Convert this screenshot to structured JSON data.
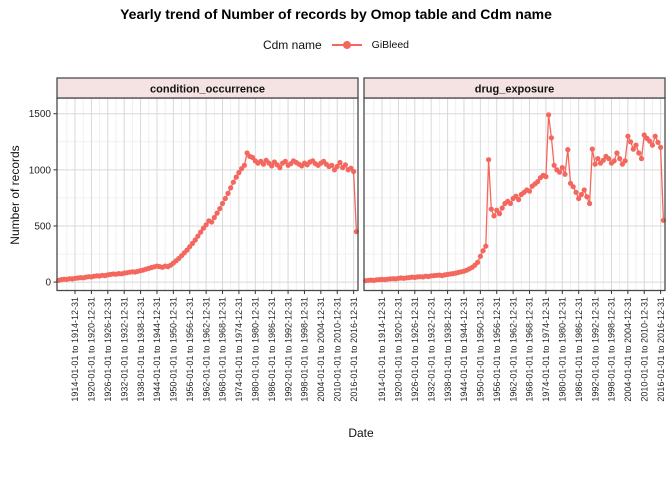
{
  "page": {
    "title": "Yearly trend of Number of records by Omop table and Cdm name"
  },
  "legend": {
    "title": "Cdm name",
    "items": [
      {
        "label": "GiBleed",
        "color": "#f4675e"
      }
    ]
  },
  "style": {
    "series_color": "#f4675e",
    "strip_fill": "#f5e3e3",
    "panel_border": "#4a4a4a",
    "grid_major": "#d9d9d9",
    "grid_minor": "#ececec",
    "tick_color": "#333333",
    "tick_label_color": "#262626"
  },
  "chart_data": {
    "type": "line",
    "title": "Yearly trend of Number of records by Omop table and Cdm name",
    "xlabel": "Date",
    "ylabel": "Number of records",
    "legend_title": "Cdm name",
    "legend_position": "top",
    "grid": true,
    "ylim": [
      0,
      1500
    ],
    "yticks": [
      0,
      500,
      1000,
      1500
    ],
    "yticks_minor": [
      250,
      750,
      1250
    ],
    "facets": [
      "condition_occurrence",
      "drug_exposure"
    ],
    "x_years_start": 1908,
    "x_years_end": 2017,
    "x_tick_years": [
      1914,
      1920,
      1926,
      1932,
      1938,
      1944,
      1950,
      1956,
      1962,
      1968,
      1974,
      1980,
      1986,
      1992,
      1998,
      2004,
      2010,
      2016
    ],
    "x_tick_labels": [
      "1914-01-01 to 1914-12-31",
      "1920-01-01 to 1920-12-31",
      "1926-01-01 to 1926-12-31",
      "1932-01-01 to 1932-12-31",
      "1938-01-01 to 1938-12-31",
      "1944-01-01 to 1944-12-31",
      "1950-01-01 to 1950-12-31",
      "1956-01-01 to 1956-12-31",
      "1962-01-01 to 1962-12-31",
      "1968-01-01 to 1968-12-31",
      "1974-01-01 to 1974-12-31",
      "1980-01-01 to 1980-12-31",
      "1986-01-01 to 1986-12-31",
      "1992-01-01 to 1992-12-31",
      "1998-01-01 to 1998-12-31",
      "2004-01-01 to 2004-12-31",
      "2010-01-01 to 2010-12-31",
      "2016-01-01 to 2016-12-31"
    ],
    "series": [
      {
        "name": "GiBleed",
        "facet": "condition_occurrence",
        "color": "#f4675e",
        "values": [
          15,
          22,
          26,
          24,
          30,
          28,
          34,
          36,
          40,
          38,
          44,
          48,
          46,
          52,
          56,
          54,
          60,
          58,
          64,
          68,
          72,
          70,
          76,
          74,
          80,
          84,
          88,
          92,
          90,
          96,
          102,
          108,
          116,
          122,
          130,
          136,
          142,
          138,
          132,
          142,
          138,
          150,
          170,
          190,
          210,
          235,
          260,
          285,
          315,
          345,
          375,
          410,
          445,
          480,
          510,
          545,
          535,
          575,
          615,
          655,
          700,
          745,
          790,
          840,
          890,
          935,
          975,
          1010,
          1040,
          1150,
          1120,
          1110,
          1080,
          1060,
          1075,
          1050,
          1085,
          1060,
          1035,
          1070,
          1045,
          1020,
          1060,
          1075,
          1040,
          1055,
          1080,
          1065,
          1050,
          1035,
          1060,
          1045,
          1070,
          1080,
          1055,
          1040,
          1060,
          1075,
          1050,
          1030,
          1040,
          1000,
          1030,
          1065,
          1020,
          1045,
          1000,
          1015,
          985,
          450
        ]
      },
      {
        "name": "GiBleed",
        "facet": "drug_exposure",
        "color": "#f4675e",
        "values": [
          12,
          16,
          18,
          15,
          20,
          22,
          24,
          22,
          26,
          28,
          30,
          28,
          34,
          36,
          34,
          38,
          40,
          44,
          42,
          46,
          48,
          46,
          52,
          50,
          56,
          58,
          60,
          62,
          58,
          64,
          68,
          72,
          76,
          80,
          86,
          92,
          98,
          106,
          118,
          132,
          150,
          175,
          230,
          280,
          320,
          1090,
          650,
          590,
          640,
          610,
          660,
          700,
          720,
          700,
          745,
          765,
          735,
          780,
          800,
          820,
          810,
          855,
          875,
          895,
          930,
          950,
          940,
          1490,
          1285,
          1040,
          1000,
          980,
          1020,
          960,
          1180,
          880,
          850,
          800,
          745,
          780,
          820,
          760,
          700,
          1185,
          1050,
          1100,
          1060,
          1085,
          1120,
          1100,
          1060,
          1080,
          1150,
          1100,
          1050,
          1080,
          1300,
          1250,
          1185,
          1220,
          1150,
          1100,
          1310,
          1280,
          1255,
          1220,
          1300,
          1245,
          1200,
          550
        ]
      }
    ]
  }
}
